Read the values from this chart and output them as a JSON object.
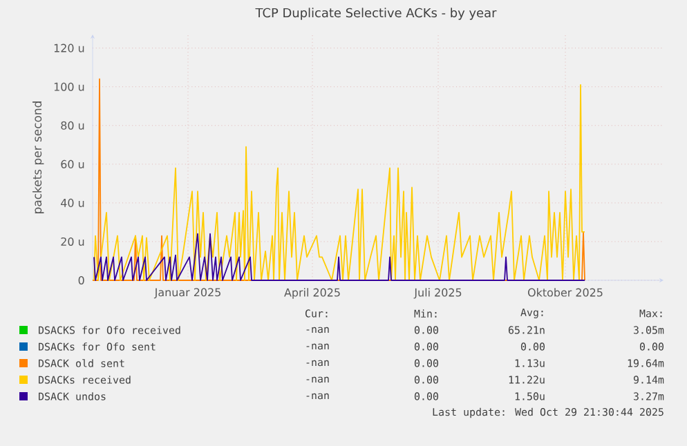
{
  "chart_data": {
    "type": "line",
    "title": "TCP Duplicate Selective ACKs - by year",
    "ylabel": "packets per second",
    "xlim": [
      "2024-10-24",
      "2025-12-11"
    ],
    "xticks": [
      {
        "value": "2025-01-01",
        "label": "Januar 2025"
      },
      {
        "value": "2025-04-01",
        "label": "April 2025"
      },
      {
        "value": "2025-07-01",
        "label": "Juli 2025"
      },
      {
        "value": "2025-10-01",
        "label": "Oktober 2025"
      }
    ],
    "ylim": [
      0,
      127
    ],
    "yticks": [
      0,
      {
        "value": 20,
        "label": "20 u"
      },
      {
        "value": 40,
        "label": "40 u"
      },
      {
        "value": 60,
        "label": "60 u"
      },
      {
        "value": 80,
        "label": "80 u"
      },
      {
        "value": 100,
        "label": "100 u"
      },
      {
        "value": 120,
        "label": "120 u"
      }
    ],
    "grid": true,
    "legend": "bottom",
    "series": [
      {
        "name": "DSACKS for Ofo received",
        "color": "#00cc00",
        "values": [
          null
        ]
      },
      {
        "name": "DSACKs for Ofo sent",
        "color": "#0066b3",
        "values": [
          null
        ]
      },
      {
        "name": "DSACK old sent",
        "color": "#ff8000",
        "x": [
          "2024-10-24",
          "2024-10-28",
          "2024-10-29",
          "2024-10-30",
          "2024-11-23",
          "2024-11-24",
          "2024-11-25",
          "2024-12-12",
          "2024-12-13",
          "2024-12-14",
          "2025-10-13",
          "2025-10-14",
          "2025-10-15"
        ],
        "values": [
          0,
          0,
          104,
          0,
          0,
          23,
          0,
          0,
          23,
          0,
          0,
          25,
          0
        ]
      },
      {
        "name": "DSACKs received",
        "color": "#ffcc00",
        "x": [
          "2024-10-25",
          "2024-10-26",
          "2024-10-28",
          "2024-11-03",
          "2024-11-05",
          "2024-11-11",
          "2024-11-13",
          "2024-11-24",
          "2024-11-26",
          "2024-11-29",
          "2024-11-30",
          "2024-12-02",
          "2024-12-04",
          "2024-12-17",
          "2024-12-19",
          "2024-12-23",
          "2024-12-25",
          "2024-12-28",
          "2025-01-04",
          "2025-01-06",
          "2025-01-08",
          "2025-01-10",
          "2025-01-12",
          "2025-01-14",
          "2025-01-17",
          "2025-01-19",
          "2025-01-22",
          "2025-01-24",
          "2025-01-29",
          "2025-01-31",
          "2025-02-04",
          "2025-02-05",
          "2025-02-07",
          "2025-02-08",
          "2025-02-10",
          "2025-02-11",
          "2025-02-12",
          "2025-02-14",
          "2025-02-16",
          "2025-02-18",
          "2025-02-21",
          "2025-02-23",
          "2025-02-26",
          "2025-02-28",
          "2025-03-03",
          "2025-03-04",
          "2025-03-06",
          "2025-03-07",
          "2025-03-08",
          "2025-03-10",
          "2025-03-12",
          "2025-03-15",
          "2025-03-17",
          "2025-03-19",
          "2025-03-21",
          "2025-03-26",
          "2025-03-28",
          "2025-04-04",
          "2025-04-06",
          "2025-04-08",
          "2025-04-15",
          "2025-04-21",
          "2025-04-23",
          "2025-04-25",
          "2025-04-27",
          "2025-05-04",
          "2025-05-05",
          "2025-05-07",
          "2025-05-09",
          "2025-05-13",
          "2025-05-17",
          "2025-05-19",
          "2025-05-27",
          "2025-05-28",
          "2025-05-30",
          "2025-05-31",
          "2025-06-02",
          "2025-06-04",
          "2025-06-06",
          "2025-06-07",
          "2025-06-08",
          "2025-06-10",
          "2025-06-12",
          "2025-06-14",
          "2025-06-16",
          "2025-06-18",
          "2025-06-23",
          "2025-06-26",
          "2025-07-02",
          "2025-07-07",
          "2025-07-09",
          "2025-07-16",
          "2025-07-18",
          "2025-07-24",
          "2025-07-26",
          "2025-07-31",
          "2025-08-03",
          "2025-08-08",
          "2025-08-10",
          "2025-08-14",
          "2025-08-16",
          "2025-08-21",
          "2025-08-23",
          "2025-08-25",
          "2025-08-30",
          "2025-09-01",
          "2025-09-05",
          "2025-09-07",
          "2025-09-12",
          "2025-09-16",
          "2025-09-18",
          "2025-09-19",
          "2025-09-21",
          "2025-09-23",
          "2025-09-25",
          "2025-09-27",
          "2025-09-29",
          "2025-10-01",
          "2025-10-03",
          "2025-10-05",
          "2025-10-07",
          "2025-10-09",
          "2025-10-11",
          "2025-10-12",
          "2025-10-13",
          "2025-10-15"
        ],
        "values": [
          0,
          23,
          0,
          35,
          0,
          23,
          0,
          23,
          12,
          23,
          0,
          22,
          0,
          23,
          0,
          58,
          0,
          12,
          46,
          0,
          46,
          12,
          35,
          0,
          23,
          12,
          35,
          0,
          23,
          12,
          35,
          0,
          35,
          12,
          36,
          0,
          69,
          0,
          46,
          0,
          35,
          0,
          15,
          0,
          23,
          0,
          48,
          58,
          0,
          35,
          0,
          46,
          12,
          35,
          0,
          23,
          12,
          23,
          12,
          12,
          0,
          23,
          0,
          23,
          0,
          47,
          0,
          47,
          0,
          12,
          23,
          0,
          58,
          0,
          23,
          0,
          58,
          12,
          46,
          0,
          35,
          0,
          48,
          0,
          23,
          0,
          23,
          12,
          0,
          23,
          0,
          35,
          12,
          23,
          0,
          23,
          12,
          23,
          0,
          35,
          12,
          35,
          46,
          0,
          23,
          0,
          23,
          12,
          0,
          23,
          0,
          46,
          12,
          35,
          12,
          35,
          0,
          46,
          12,
          47,
          0,
          23,
          0,
          101,
          25,
          25
        ]
      },
      {
        "name": "DSACK undos",
        "color": "#330099",
        "x": [
          "2024-10-25",
          "2024-10-26",
          "2024-10-30",
          "2024-10-31",
          "2024-11-03",
          "2024-11-04",
          "2024-11-08",
          "2024-11-09",
          "2024-11-14",
          "2024-11-15",
          "2024-11-21",
          "2024-11-22",
          "2024-11-26",
          "2024-11-27",
          "2024-12-01",
          "2024-12-02",
          "2024-12-15",
          "2024-12-16",
          "2024-12-19",
          "2024-12-20",
          "2024-12-23",
          "2024-12-24",
          "2025-01-02",
          "2025-01-04",
          "2025-01-08",
          "2025-01-10",
          "2025-01-13",
          "2025-01-15",
          "2025-01-17",
          "2025-01-19",
          "2025-01-21",
          "2025-01-22",
          "2025-01-25",
          "2025-01-26",
          "2025-02-01",
          "2025-02-02",
          "2025-02-07",
          "2025-02-08",
          "2025-02-15",
          "2025-02-16",
          "2025-04-19",
          "2025-04-20",
          "2025-04-21",
          "2025-05-26",
          "2025-05-27",
          "2025-05-28",
          "2025-08-18",
          "2025-08-19",
          "2025-08-20",
          "2025-10-15"
        ],
        "values": [
          12,
          0,
          12,
          0,
          12,
          0,
          12,
          0,
          12,
          0,
          12,
          0,
          12,
          0,
          12,
          0,
          12,
          0,
          12,
          0,
          13,
          0,
          12,
          0,
          24,
          0,
          12,
          0,
          24,
          0,
          12,
          0,
          12,
          0,
          12,
          0,
          12,
          0,
          12,
          0,
          0,
          12,
          0,
          0,
          12,
          0,
          0,
          12,
          0,
          0
        ]
      }
    ],
    "annotations": [
      "Cur:",
      "Min:",
      "Avg:",
      "Max:",
      "-nan",
      "0.00",
      "65.21n",
      "3.05m",
      "-nan",
      "0.00",
      "0.00",
      "0.00",
      "-nan",
      "0.00",
      "1.13u",
      "19.64m",
      "-nan",
      "0.00",
      "11.22u",
      "9.14m",
      "-nan",
      "0.00",
      "1.50u",
      "3.27m",
      "Last update: Wed Oct 29 21:30:44 2025"
    ]
  }
}
